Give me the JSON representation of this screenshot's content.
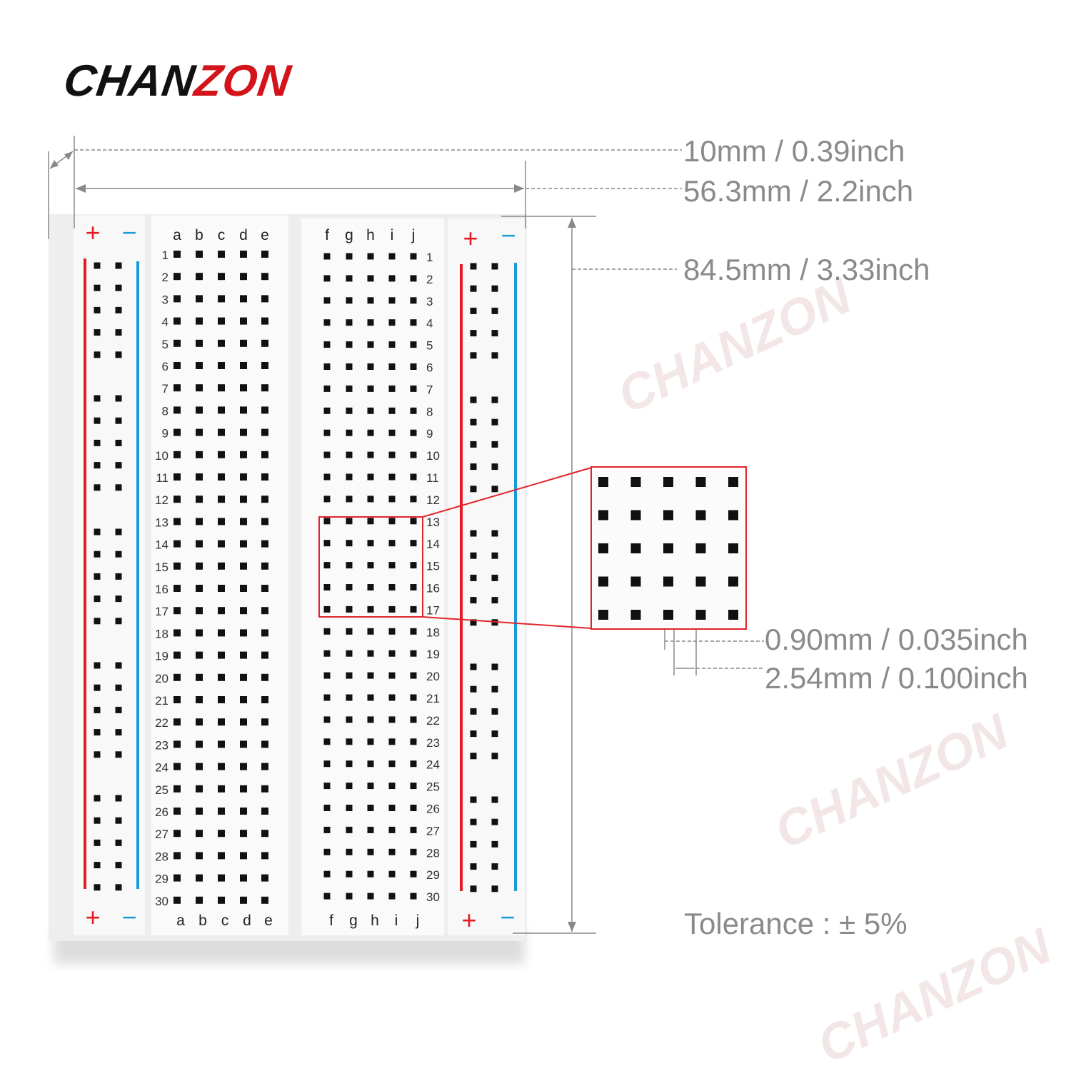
{
  "brand": {
    "logo_black": "CHAN",
    "logo_red": "ZON",
    "watermark": "CHANZON"
  },
  "dimensions": {
    "rail_width": "10mm / 0.39inch",
    "board_width": "56.3mm / 2.2inch",
    "board_height": "84.5mm / 3.33inch",
    "hole_size": "0.90mm / 0.035inch",
    "hole_pitch": "2.54mm / 0.100inch",
    "tolerance": "Tolerance : ± 5%"
  },
  "breadboard": {
    "plus": "+",
    "minus": "−",
    "left_columns": [
      "a",
      "b",
      "c",
      "d",
      "e"
    ],
    "right_columns": [
      "f",
      "g",
      "h",
      "i",
      "j"
    ],
    "row_labels": [
      "1",
      "2",
      "3",
      "4",
      "5",
      "6",
      "7",
      "8",
      "9",
      "10",
      "11",
      "12",
      "13",
      "14",
      "15",
      "16",
      "17",
      "18",
      "19",
      "20",
      "21",
      "22",
      "23",
      "24",
      "25",
      "26",
      "27",
      "28",
      "29",
      "30"
    ]
  },
  "colors": {
    "positive_rail": "#e31b23",
    "negative_rail": "#1a9ad6",
    "callout": "#e0242b",
    "dimension": "#8a8a8a"
  }
}
